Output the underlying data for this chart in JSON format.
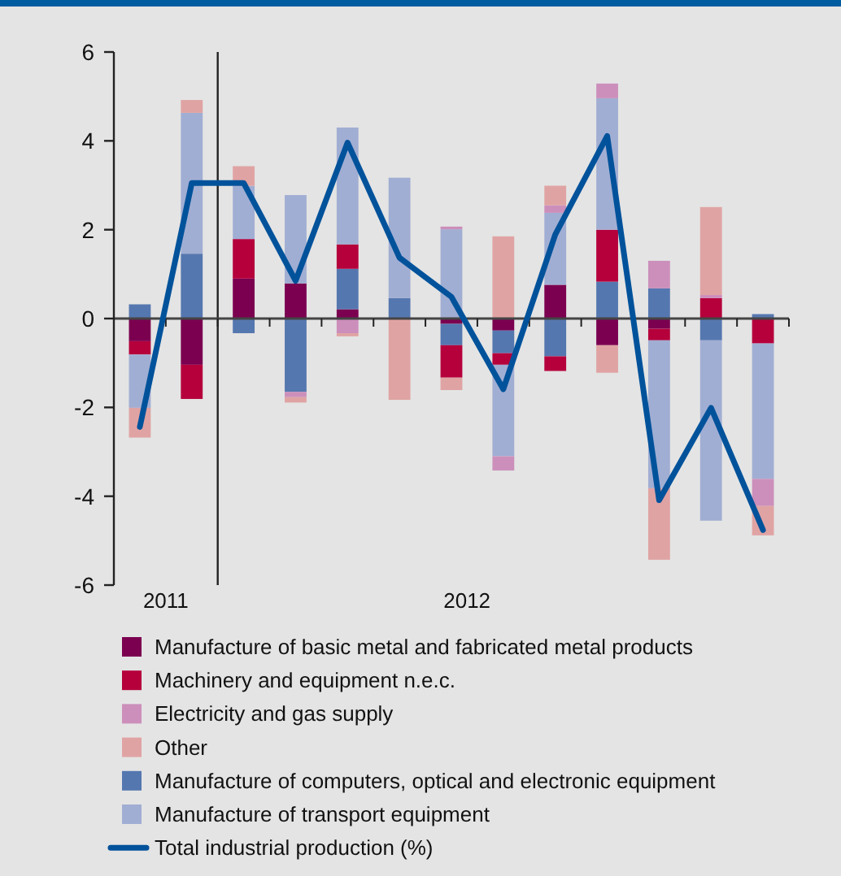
{
  "chart_data": {
    "type": "bar",
    "stacked": true,
    "legend": "bottom",
    "categories": [
      null,
      null,
      null,
      null,
      null,
      null,
      null,
      null,
      null,
      null,
      null,
      null,
      null
    ],
    "ylim": [
      -6,
      6
    ],
    "yticks": [
      -6,
      -4,
      -2,
      0,
      2,
      4,
      6
    ],
    "annotations": [
      "2011",
      "2012"
    ],
    "series": [
      {
        "name": "Manufacture of basic metal and fabricated metal products",
        "color": "#7b0050",
        "values": [
          -0.51,
          -1.04,
          0.9,
          0.79,
          0.21,
          null,
          -0.12,
          -0.27,
          0.76,
          -0.6,
          -0.23,
          0,
          0
        ]
      },
      {
        "name": "Manufacture of computers, optical and electronic equipment",
        "color": "#5577b0",
        "values": [
          0.32,
          1.46,
          -0.33,
          -1.65,
          0.91,
          0.46,
          -0.48,
          -0.51,
          -0.85,
          0.83,
          0.68,
          -0.49,
          0.1
        ]
      },
      {
        "name": "Machinery and equipment n.e.c.",
        "color": "#b5003c",
        "values": [
          -0.3,
          -0.77,
          0.89,
          0,
          0.55,
          0,
          -0.73,
          -0.26,
          -0.33,
          1.17,
          -0.26,
          0.46,
          -0.56
        ]
      },
      {
        "name": "Manufacture of transport equipment",
        "color": "#a1aed3",
        "values": [
          -1.2,
          3.17,
          1.2,
          1.99,
          2.63,
          2.71,
          2.01,
          -2.06,
          1.62,
          2.96,
          -3.33,
          -4.06,
          -3.05
        ]
      },
      {
        "name": "Electricity and gas supply",
        "color": "#cc8fbb",
        "values": [
          0,
          0,
          0,
          -0.12,
          -0.33,
          0,
          0.06,
          -0.32,
          0.17,
          0.33,
          0.62,
          0.07,
          -0.61
        ]
      },
      {
        "name": "Other",
        "color": "#e0a3a3",
        "values": [
          -0.67,
          0.29,
          0.44,
          -0.12,
          -0.07,
          -1.83,
          -0.28,
          1.85,
          0.44,
          -0.62,
          -1.61,
          1.98,
          -0.66
        ]
      },
      {
        "name": "Total industrial production (%)",
        "type": "line",
        "color": "#00529b",
        "values": [
          -2.44,
          3.05,
          3.05,
          0.85,
          3.96,
          1.37,
          0.49,
          -1.59,
          1.89,
          4.11,
          -4.09,
          -2.01,
          -4.76
        ]
      }
    ]
  }
}
